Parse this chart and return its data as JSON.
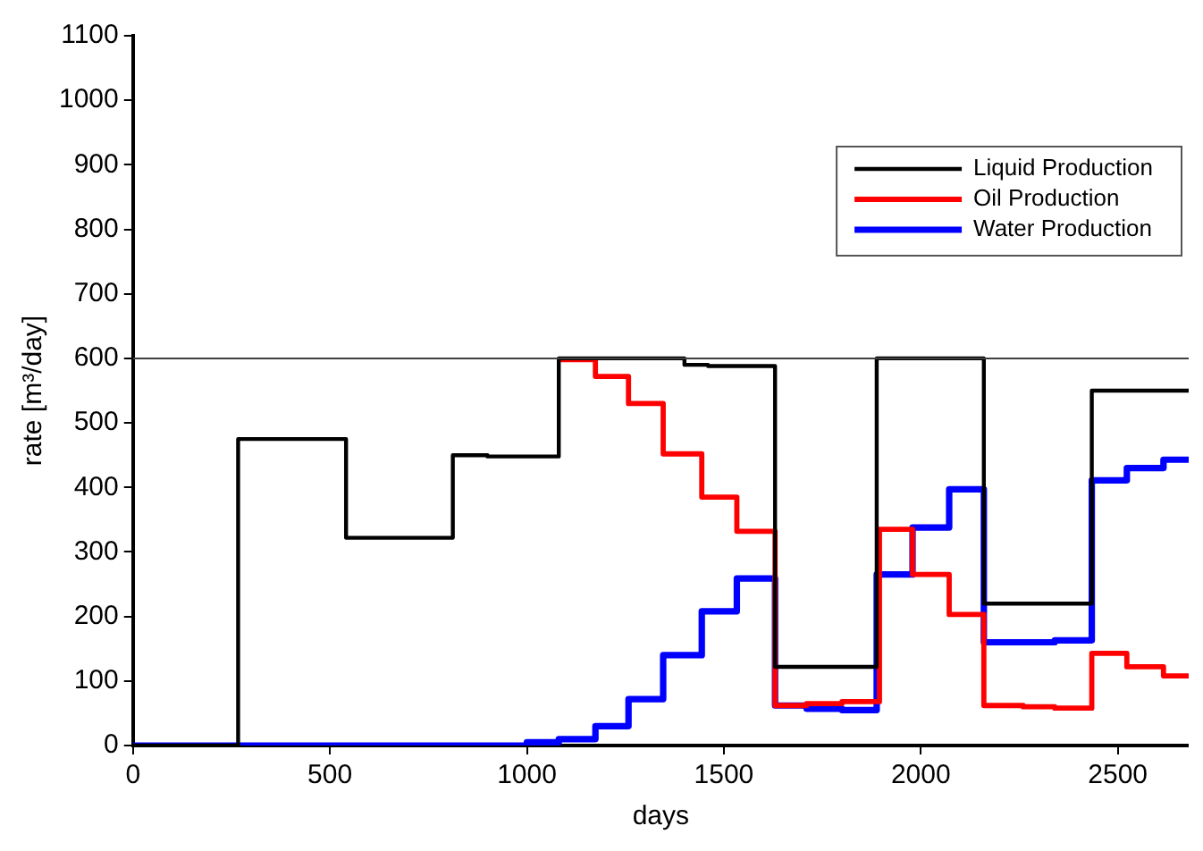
{
  "chart_data": {
    "type": "step",
    "xlabel": "days",
    "ylabel": "rate [m³/day]",
    "xlim": [
      0,
      2680
    ],
    "xticks": [
      0,
      500,
      1000,
      1500,
      2000,
      2500
    ],
    "ylim": [
      0,
      1100
    ],
    "yticks": [
      0,
      100,
      200,
      300,
      400,
      500,
      600,
      700,
      800,
      900,
      1000,
      1100
    ],
    "grid": false,
    "legend": "top right",
    "marker": "none",
    "line_style": "solid",
    "ref_lines": [
      {
        "axis": "y",
        "value": 600,
        "color": "#404040"
      }
    ],
    "series": [
      {
        "name": "Liquid Production",
        "color": "#000000",
        "x": [
          0,
          267,
          541,
          812,
          900,
          1081,
          1400,
          1460,
          1630,
          1888,
          2160,
          2434,
          2680
        ],
        "values": [
          0,
          475,
          322,
          450,
          448,
          600,
          590,
          588,
          122,
          600,
          220,
          550,
          550
        ]
      },
      {
        "name": "Oil Production",
        "color": "#ff0000",
        "x": [
          1081,
          1174,
          1258,
          1346,
          1444,
          1533,
          1630,
          1710,
          1800,
          1895,
          1979,
          2072,
          2160,
          2260,
          2340,
          2434,
          2523,
          2616,
          2680
        ],
        "values": [
          598,
          572,
          530,
          452,
          385,
          332,
          62,
          65,
          68,
          335,
          265,
          203,
          62,
          60,
          58,
          143,
          122,
          108,
          108
        ]
      },
      {
        "name": "Water Production",
        "color": "#0000ff",
        "x": [
          0,
          1000,
          1081,
          1174,
          1258,
          1346,
          1444,
          1533,
          1630,
          1710,
          1800,
          1888,
          1979,
          2072,
          2160,
          2340,
          2434,
          2523,
          2616,
          2680
        ],
        "values": [
          0,
          5,
          10,
          30,
          72,
          140,
          208,
          259,
          62,
          57,
          55,
          265,
          338,
          397,
          160,
          163,
          411,
          430,
          443,
          443
        ]
      }
    ]
  }
}
